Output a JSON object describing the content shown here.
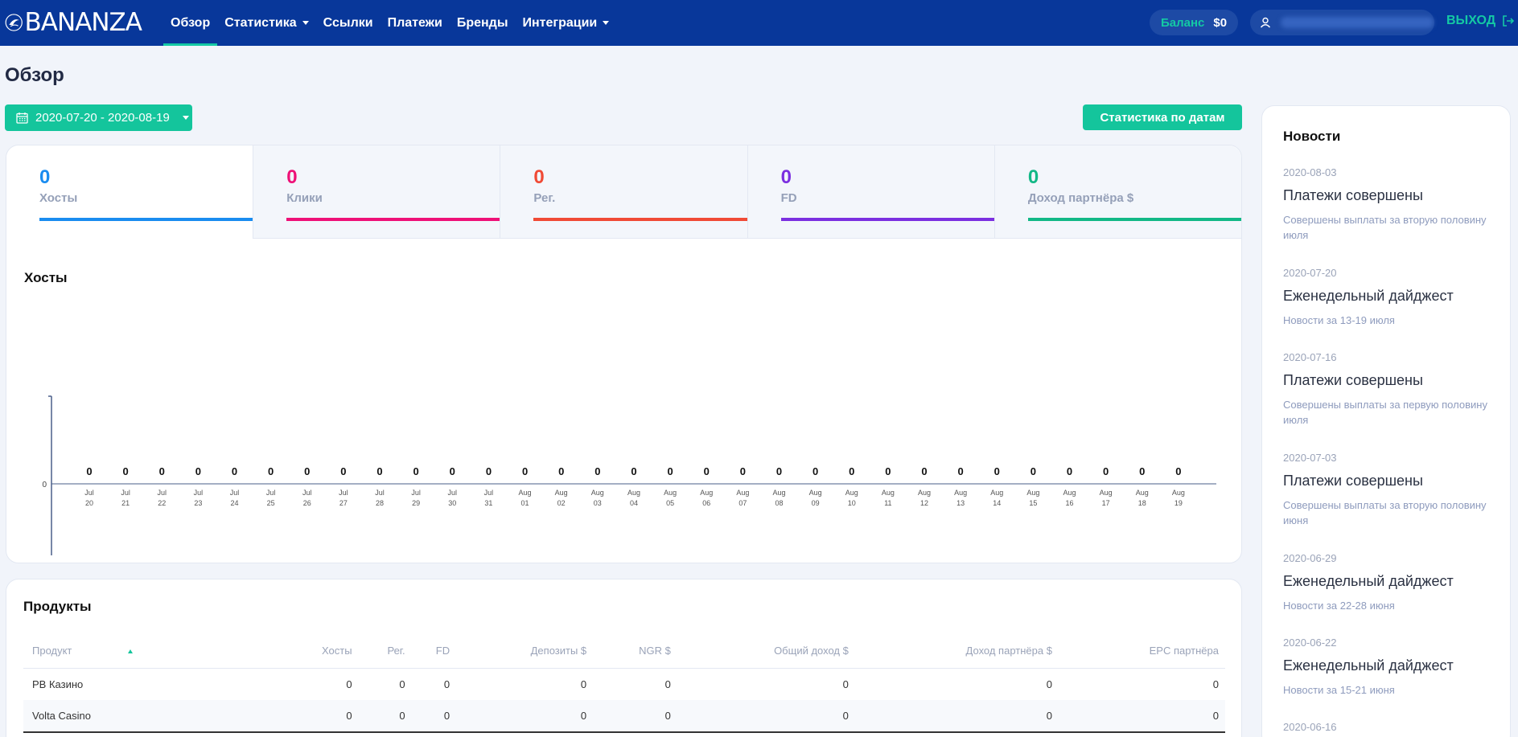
{
  "brand": {
    "name": "BANANZA"
  },
  "nav": [
    {
      "label": "Обзор",
      "active": true,
      "dropdown": false
    },
    {
      "label": "Статистика",
      "active": false,
      "dropdown": true
    },
    {
      "label": "Ссылки",
      "active": false,
      "dropdown": false
    },
    {
      "label": "Платежи",
      "active": false,
      "dropdown": false
    },
    {
      "label": "Бренды",
      "active": false,
      "dropdown": false
    },
    {
      "label": "Интеграции",
      "active": false,
      "dropdown": true
    }
  ],
  "header": {
    "balance_label": "Баланс",
    "balance_value": "$0",
    "logout_label": "ВЫХОД"
  },
  "page": {
    "title": "Обзор"
  },
  "toolbar": {
    "date_range": "2020-07-20 - 2020-08-19",
    "stats_button": "Статистика по датам"
  },
  "kpis": [
    {
      "value": "0",
      "label": "Хосты",
      "color": "#1a8cf0"
    },
    {
      "value": "0",
      "label": "Клики",
      "color": "#ee1177"
    },
    {
      "value": "0",
      "label": "Рег.",
      "color": "#f04a35"
    },
    {
      "value": "0",
      "label": "FD",
      "color": "#7b2fe0"
    },
    {
      "value": "0",
      "label": "Доход партнёра $",
      "color": "#12b886"
    }
  ],
  "chart": {
    "title": "Хосты"
  },
  "chart_data": {
    "type": "bar",
    "categories": [
      "Jul 20",
      "Jul 21",
      "Jul 22",
      "Jul 23",
      "Jul 24",
      "Jul 25",
      "Jul 26",
      "Jul 27",
      "Jul 28",
      "Jul 29",
      "Jul 30",
      "Jul 31",
      "Aug 01",
      "Aug 02",
      "Aug 03",
      "Aug 04",
      "Aug 05",
      "Aug 06",
      "Aug 07",
      "Aug 08",
      "Aug 09",
      "Aug 10",
      "Aug 11",
      "Aug 12",
      "Aug 13",
      "Aug 14",
      "Aug 15",
      "Aug 16",
      "Aug 17",
      "Aug 18",
      "Aug 19"
    ],
    "values": [
      0,
      0,
      0,
      0,
      0,
      0,
      0,
      0,
      0,
      0,
      0,
      0,
      0,
      0,
      0,
      0,
      0,
      0,
      0,
      0,
      0,
      0,
      0,
      0,
      0,
      0,
      0,
      0,
      0,
      0,
      0
    ],
    "yticks": [
      "0"
    ],
    "title": "Хосты",
    "xlabel": "",
    "ylabel": ""
  },
  "news": {
    "title": "Новости",
    "items": [
      {
        "date": "2020-08-03",
        "title": "Платежи совершены",
        "desc": "Совершены выплаты за вторую половину июля"
      },
      {
        "date": "2020-07-20",
        "title": "Еженедельный дайджест",
        "desc": "Новости за 13-19 июля"
      },
      {
        "date": "2020-07-16",
        "title": "Платежи совершены",
        "desc": "Совершены выплаты за первую половину июля"
      },
      {
        "date": "2020-07-03",
        "title": "Платежи совершены",
        "desc": "Совершены выплаты за вторую половину июня"
      },
      {
        "date": "2020-06-29",
        "title": "Еженедельный дайджест",
        "desc": "Новости за 22-28 июня"
      },
      {
        "date": "2020-06-22",
        "title": "Еженедельный дайджест",
        "desc": "Новости за 15-21 июня"
      },
      {
        "date": "2020-06-16",
        "title": "",
        "desc": ""
      }
    ]
  },
  "products": {
    "title": "Продукты",
    "columns": [
      "Продукт",
      "Хосты",
      "Рег.",
      "FD",
      "Депозиты $",
      "NGR $",
      "Общий доход $",
      "Доход партнёра $",
      "EPC партнёра"
    ],
    "rows": [
      [
        "PB Казино",
        "0",
        "0",
        "0",
        "0",
        "0",
        "0",
        "0",
        "0"
      ],
      [
        "Volta Casino",
        "0",
        "0",
        "0",
        "0",
        "0",
        "0",
        "0",
        "0"
      ]
    ]
  }
}
